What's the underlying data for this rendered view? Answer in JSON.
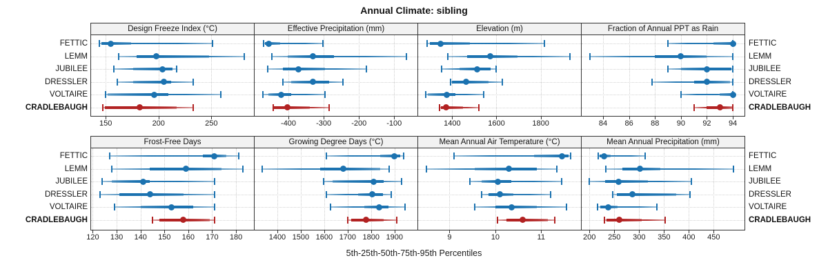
{
  "title": "Annual Climate: sibling",
  "footer": "5th-25th-50th-75th-95th Percentiles",
  "sites": [
    "FETTIC",
    "LEMM",
    "JUBILEE",
    "DRESSLER",
    "VOLTAIRE",
    "CRADLEBAUGH"
  ],
  "highlight_site": "CRADLEBAUGH",
  "colors": {
    "series_blue": "#1B72B0",
    "highlight_red": "#B22222",
    "panel_border": "#333333",
    "header_bg": "#F2F2F2",
    "grid": "#CCCCCC"
  },
  "chart_data": {
    "type": "dotplot-percentiles",
    "title": "Annual Climate: sibling",
    "xlabel": "5th-25th-50th-75th-95th Percentiles",
    "percentiles": [
      5,
      25,
      50,
      75,
      95
    ],
    "legend_position": "none",
    "grid": "dotted",
    "panels": [
      {
        "title": "Design Freeze Index (°C)",
        "ticks": [
          150,
          200,
          250
        ],
        "range": [
          135.5,
          290.3
        ],
        "values": {
          "FETTIC": [
            144,
            146,
            155,
            174,
            251
          ],
          "LEMM": [
            162,
            179,
            198,
            248,
            281
          ],
          "JUBILEE": [
            158,
            176,
            204,
            213,
            217
          ],
          "DRESSLER": [
            161,
            176,
            205,
            212,
            233
          ],
          "VOLTAIRE": [
            150,
            152,
            196,
            209,
            259
          ],
          "CRADLEBAUGH": [
            147,
            149,
            182,
            217,
            233
          ]
        }
      },
      {
        "title": "Effective Precipitation (mm)",
        "ticks": [
          -400,
          -300,
          -200,
          -100
        ],
        "range": [
          -498,
          -34
        ],
        "values": {
          "FETTIC": [
            -470,
            -467,
            -455,
            -424,
            -303
          ],
          "LEMM": [
            -447,
            -402,
            -330,
            -270,
            -65
          ],
          "JUBILEE": [
            -459,
            -415,
            -371,
            -297,
            -179
          ],
          "DRESSLER": [
            -416,
            -392,
            -331,
            -284,
            -246
          ],
          "VOLTAIRE": [
            -473,
            -456,
            -420,
            -392,
            -296
          ],
          "CRADLEBAUGH": [
            -444,
            -441,
            -403,
            -339,
            -285
          ]
        }
      },
      {
        "title": "Elevation (m)",
        "ticks": [
          1400,
          1600,
          1800
        ],
        "range": [
          1243,
          1982
        ],
        "values": {
          "FETTIC": [
            1286,
            1300,
            1346,
            1481,
            1817
          ],
          "LEMM": [
            1380,
            1466,
            1573,
            1695,
            1932
          ],
          "JUBILEE": [
            1351,
            1434,
            1513,
            1575,
            1599
          ],
          "DRESSLER": [
            1392,
            1398,
            1463,
            1564,
            1625
          ],
          "VOLTAIRE": [
            1281,
            1289,
            1375,
            1413,
            1542
          ],
          "CRADLEBAUGH": [
            1344,
            1348,
            1372,
            1450,
            1521
          ]
        }
      },
      {
        "title": "Fraction of Annual PPT as Rain",
        "ticks": [
          84,
          86,
          88,
          90,
          92,
          94
        ],
        "range": [
          82.3,
          94.9
        ],
        "values": {
          "FETTIC": [
            89,
            92.5,
            94,
            94,
            94
          ],
          "LEMM": [
            83,
            88,
            90,
            92,
            94
          ],
          "JUBILEE": [
            89,
            90,
            92,
            93.9,
            94
          ],
          "DRESSLER": [
            87.8,
            91,
            92,
            93.8,
            94
          ],
          "VOLTAIRE": [
            90,
            93,
            94,
            94,
            94
          ],
          "CRADLEBAUGH": [
            91,
            92,
            93,
            94,
            94
          ]
        }
      },
      {
        "title": "Frost-Free Days",
        "ticks": [
          120,
          130,
          140,
          150,
          160,
          170,
          180
        ],
        "range": [
          119,
          187.5
        ],
        "values": {
          "FETTIC": [
            127,
            166,
            171,
            176,
            181
          ],
          "LEMM": [
            128,
            144,
            159,
            174,
            183
          ],
          "JUBILEE": [
            124,
            128,
            141,
            144,
            171
          ],
          "DRESSLER": [
            123,
            131,
            144,
            158,
            171
          ],
          "VOLTAIRE": [
            129,
            140,
            153,
            162,
            171
          ],
          "CRADLEBAUGH": [
            145,
            148,
            158,
            169,
            171
          ]
        }
      },
      {
        "title": "Growing Degree Days (°C)",
        "ticks": [
          1400,
          1500,
          1600,
          1700,
          1800,
          1900
        ],
        "range": [
          1300,
          1998
        ],
        "values": {
          "FETTIC": [
            1610,
            1840,
            1900,
            1925,
            1940
          ],
          "LEMM": [
            1335,
            1583,
            1680,
            1838,
            1877
          ],
          "JUBILEE": [
            1596,
            1635,
            1810,
            1855,
            1930
          ],
          "DRESSLER": [
            1610,
            1745,
            1805,
            1850,
            1885
          ],
          "VOLTAIRE": [
            1628,
            1770,
            1835,
            1875,
            1945
          ],
          "CRADLEBAUGH": [
            1700,
            1715,
            1780,
            1855,
            1910
          ]
        }
      },
      {
        "title": "Mean Annual Air Temperature (°C)",
        "ticks": [
          9,
          10,
          11
        ],
        "range": [
          8.3,
          11.87
        ],
        "values": {
          "FETTIC": [
            9.1,
            10.85,
            11.45,
            11.6,
            11.65
          ],
          "LEMM": [
            8.5,
            9.55,
            10.3,
            10.9,
            11.35
          ],
          "JUBILEE": [
            9.45,
            9.7,
            10.05,
            10.35,
            11.45
          ],
          "DRESSLER": [
            9.7,
            9.85,
            10.1,
            10.4,
            11.2
          ],
          "VOLTAIRE": [
            9.55,
            10.0,
            10.35,
            10.9,
            11.55
          ],
          "CRADLEBAUGH": [
            10.05,
            10.25,
            10.6,
            11.15,
            11.3
          ]
        }
      },
      {
        "title": "Mean Annual Precipitation (mm)",
        "ticks": [
          200,
          250,
          300,
          350,
          400,
          450
        ],
        "range": [
          183,
          512
        ],
        "values": {
          "FETTIC": [
            218,
            221,
            230,
            243,
            312
          ],
          "LEMM": [
            233,
            266,
            302,
            343,
            490
          ],
          "JUBILEE": [
            200,
            232,
            258,
            318,
            405
          ],
          "DRESSLER": [
            247,
            255,
            286,
            375,
            402
          ],
          "VOLTAIRE": [
            217,
            222,
            238,
            257,
            336
          ],
          "CRADLEBAUGH": [
            230,
            235,
            260,
            305,
            353
          ]
        }
      }
    ]
  }
}
